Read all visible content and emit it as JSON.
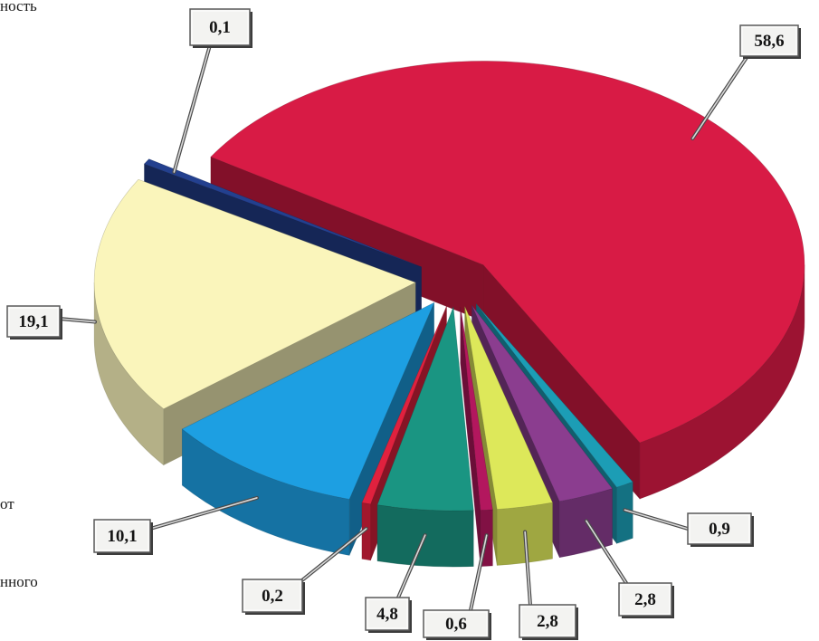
{
  "legend_fragments": [
    "ность",
    "от",
    "нного"
  ],
  "chart_data": {
    "type": "pie",
    "variant": "3d-exploded",
    "label_style": "callout boxes",
    "legend": "left (cropped)",
    "slices": [
      {
        "value": 58.6,
        "label": "58,6",
        "color": "#d81b45"
      },
      {
        "value": 0.9,
        "label": "0,9",
        "color": "#1c9db5"
      },
      {
        "value": 2.8,
        "label": "2,8",
        "color": "#8b3d8f"
      },
      {
        "value": 2.8,
        "label": "2,8",
        "color": "#dde85a"
      },
      {
        "value": 0.6,
        "label": "0,6",
        "color": "#b3175e"
      },
      {
        "value": 4.8,
        "label": "4,8",
        "color": "#1a9582"
      },
      {
        "value": 0.2,
        "label": "0,2",
        "color": "#e0213e"
      },
      {
        "value": 10.1,
        "label": "10,1",
        "color": "#1d9fe2"
      },
      {
        "value": 19.1,
        "label": "19,1",
        "color": "#faf5bb"
      },
      {
        "value": 0.1,
        "label": "0,1",
        "color": "#23408f"
      }
    ]
  }
}
